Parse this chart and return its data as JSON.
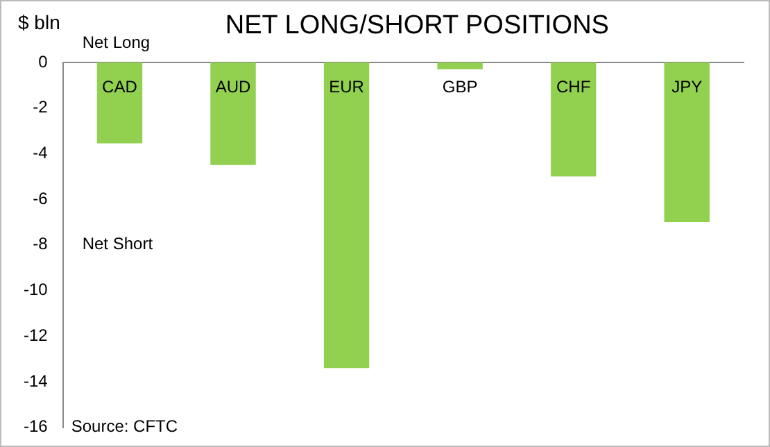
{
  "chart_data": {
    "type": "bar",
    "title": "NET LONG/SHORT POSITIONS",
    "ylabel": "$ bln",
    "categories": [
      "CAD",
      "AUD",
      "EUR",
      "GBP",
      "CHF",
      "JPY"
    ],
    "values": [
      -3.55,
      -4.5,
      -13.4,
      -0.3,
      -5.0,
      -7.0
    ],
    "color": "#92d050",
    "ylim": [
      -16,
      0
    ],
    "yticks": [
      -16,
      -14,
      -12,
      -10,
      -8,
      -6,
      -4,
      -2,
      0
    ],
    "grid": false,
    "legend": false,
    "annotations": [
      "Net Long",
      "Net Short",
      "Source: CFTC"
    ]
  }
}
